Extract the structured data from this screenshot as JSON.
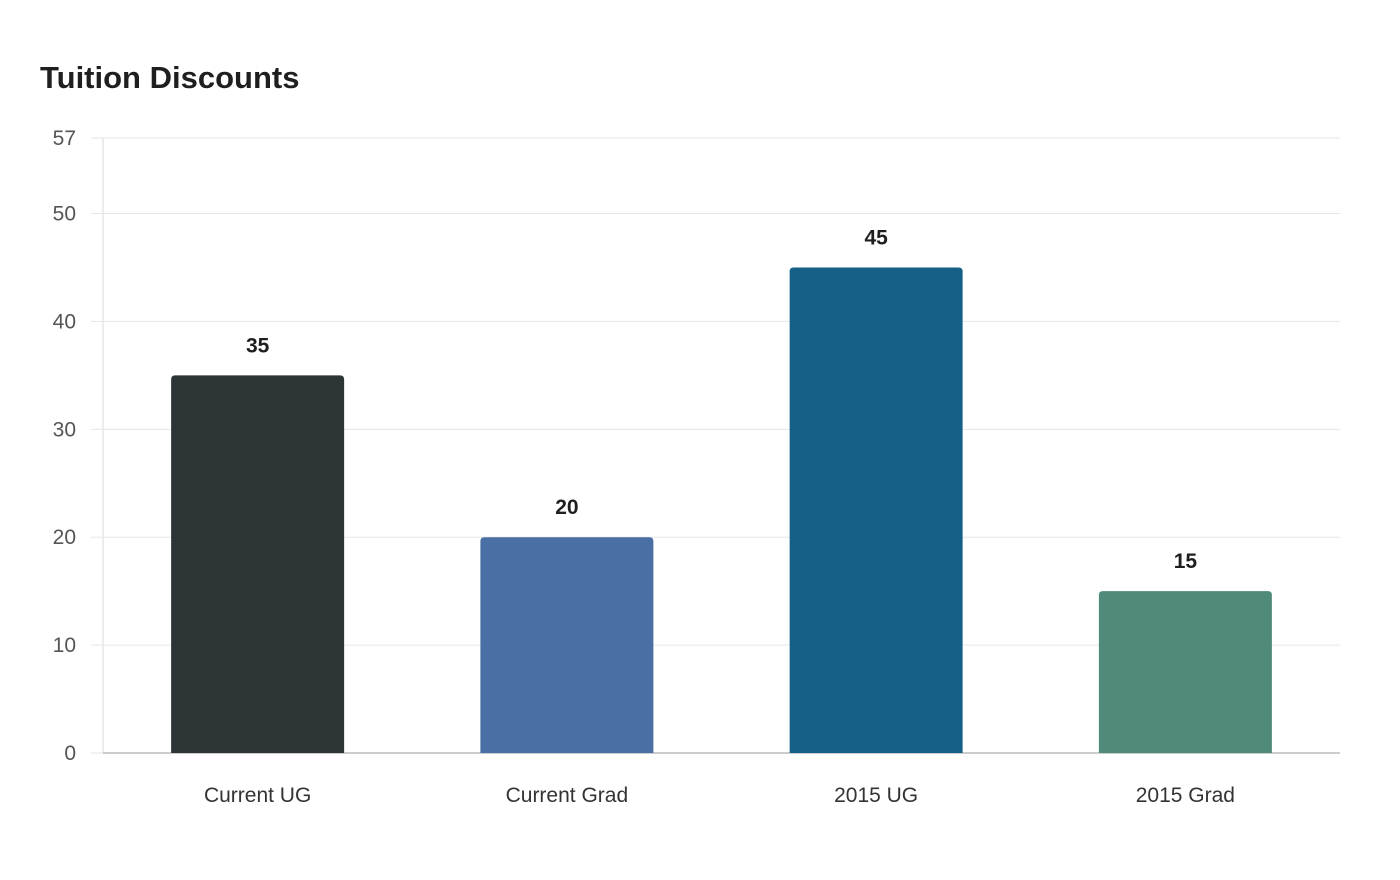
{
  "chart_data": {
    "type": "bar",
    "title": "Tuition Discounts",
    "categories": [
      "Current UG",
      "Current Grad",
      "2015 UG",
      "2015 Grad"
    ],
    "values": [
      35,
      20,
      45,
      15
    ],
    "colors": [
      "#2d3436",
      "#4a6fa5",
      "#166088",
      "#4f8a7a"
    ],
    "xlabel": "",
    "ylabel": "",
    "ylim": [
      0,
      57
    ],
    "yticks": [
      0,
      10,
      20,
      30,
      40,
      50,
      57
    ],
    "grid": true,
    "data_labels": true
  }
}
